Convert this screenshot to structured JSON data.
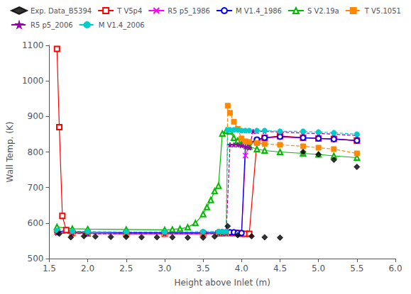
{
  "chart_data": {
    "type": "line",
    "xlabel": "Height above Inlet (m)",
    "ylabel": "Wall Temp. (K)",
    "xlim": [
      1.5,
      6.0
    ],
    "ylim": [
      500,
      1100
    ],
    "xticks": [
      1.5,
      {
        "value": 2.0,
        "label": "2.0"
      },
      2.5,
      {
        "value": 3.0,
        "label": "3.0"
      },
      3.5,
      {
        "value": 4.0,
        "label": "4.0"
      },
      4.5,
      {
        "value": 5.0,
        "label": "5.0"
      },
      5.5,
      {
        "value": 6.0,
        "label": "6.0"
      }
    ],
    "yticks": [
      500,
      600,
      700,
      800,
      900,
      1000,
      1100
    ],
    "grid": false,
    "legend": "upper left",
    "series": [
      {
        "name": "Exp. Data_B5394",
        "type": "scatter",
        "color": "#000000",
        "marker": "diamond",
        "x": [
          1.63,
          1.78,
          1.95,
          2.1,
          2.3,
          2.5,
          2.7,
          2.9,
          3.1,
          3.3,
          3.5,
          3.65,
          3.82,
          3.95,
          4.13,
          4.3,
          4.5,
          4.8,
          5.0,
          5.2,
          5.5
        ],
        "values": [
          570,
          560,
          563,
          562,
          561,
          561,
          560,
          560,
          560,
          559,
          559,
          562,
          591,
          566,
          563,
          560,
          559,
          800,
          793,
          778,
          758
        ]
      },
      {
        "name": "T V5p4",
        "type": "line",
        "color": "#ff0000",
        "line_style": "solid",
        "marker": "open square",
        "x": [
          1.6,
          1.63,
          1.67,
          1.72,
          1.8,
          2.0,
          2.5,
          3.0,
          3.5,
          3.7,
          3.75,
          3.8,
          3.85,
          3.9,
          3.95,
          4.0,
          4.05,
          4.1,
          4.2,
          4.3,
          4.5,
          4.8,
          5.0,
          5.2,
          5.5
        ],
        "values": [
          1090,
          870,
          620,
          580,
          572,
          571,
          570,
          570,
          570,
          571,
          571,
          572,
          572,
          572,
          572,
          570,
          570,
          570,
          830,
          840,
          845,
          840,
          838,
          837,
          832
        ]
      },
      {
        "name": "R5 p5_1986",
        "type": "line",
        "color": "#ff00ff",
        "line_style": "solid",
        "marker": "x",
        "x": [
          1.6,
          1.8,
          2.0,
          2.5,
          3.0,
          3.5,
          3.7,
          3.75,
          3.8,
          3.85,
          3.9,
          3.95,
          4.0,
          4.05,
          4.1,
          4.2,
          4.3,
          4.5,
          4.8,
          5.0,
          5.2,
          5.5
        ],
        "values": [
          574,
          572,
          571,
          570,
          570,
          570,
          571,
          571,
          571,
          571,
          572,
          570,
          570,
          790,
          820,
          835,
          840,
          842,
          840,
          838,
          836,
          832
        ]
      },
      {
        "name": "M V1.4_1986",
        "type": "line",
        "color": "#0000ff",
        "line_style": "solid",
        "marker": "open circle",
        "x": [
          1.6,
          1.8,
          2.0,
          2.5,
          3.0,
          3.5,
          3.7,
          3.75,
          3.8,
          3.85,
          3.9,
          3.95,
          4.0,
          4.05,
          4.1,
          4.2,
          4.3,
          4.5,
          4.8,
          5.0,
          5.2,
          5.5
        ],
        "values": [
          577,
          575,
          574,
          573,
          573,
          573,
          574,
          574,
          574,
          574,
          574,
          572,
          572,
          820,
          825,
          835,
          840,
          843,
          840,
          838,
          836,
          832
        ]
      },
      {
        "name": "S V2.19a",
        "type": "line",
        "color": "#00bb00",
        "line_style": "solid",
        "marker": "open triangle",
        "x": [
          1.6,
          1.8,
          2.0,
          2.5,
          3.0,
          3.1,
          3.2,
          3.3,
          3.4,
          3.5,
          3.55,
          3.6,
          3.65,
          3.7,
          3.75,
          3.8,
          3.85,
          3.9,
          3.95,
          4.0,
          4.1,
          4.2,
          4.3,
          4.5,
          4.8,
          5.0,
          5.2,
          5.5
        ],
        "values": [
          589,
          584,
          583,
          582,
          581,
          582,
          584,
          588,
          600,
          625,
          645,
          665,
          690,
          705,
          852,
          860,
          858,
          840,
          832,
          823,
          815,
          808,
          804,
          800,
          796,
          793,
          789,
          784
        ]
      },
      {
        "name": "T V5.1051",
        "type": "line",
        "color": "#ff8800",
        "line_style": "dashed",
        "marker": "square",
        "x": [
          1.6,
          1.8,
          2.0,
          2.5,
          3.0,
          3.5,
          3.7,
          3.75,
          3.8,
          3.82,
          3.85,
          3.9,
          3.95,
          4.0,
          4.05,
          4.1,
          4.2,
          4.3,
          4.5,
          4.8,
          5.0,
          5.2,
          5.5
        ],
        "values": [
          574,
          572,
          571,
          570,
          570,
          570,
          571,
          571,
          571,
          930,
          910,
          885,
          865,
          838,
          830,
          828,
          825,
          823,
          820,
          816,
          812,
          808,
          796
        ]
      },
      {
        "name": "R5 p5_2006",
        "type": "line",
        "color": "#9900aa",
        "line_style": "dashed",
        "marker": "star",
        "x": [
          1.6,
          1.8,
          2.0,
          2.5,
          3.0,
          3.5,
          3.7,
          3.75,
          3.8,
          3.85,
          3.9,
          3.95,
          4.0,
          4.05,
          4.1,
          4.15,
          4.2,
          4.3,
          4.5,
          4.8,
          5.0,
          5.2,
          5.5
        ],
        "values": [
          572,
          571,
          570,
          570,
          570,
          570,
          571,
          571,
          571,
          820,
          820,
          820,
          818,
          815,
          812,
          858,
          858,
          858,
          856,
          853,
          852,
          850,
          846
        ]
      },
      {
        "name": "M V1.4_2006",
        "type": "line",
        "color": "#00cccc",
        "line_style": "dashed",
        "marker": "circle",
        "x": [
          1.6,
          1.8,
          2.0,
          2.5,
          3.0,
          3.5,
          3.7,
          3.75,
          3.8,
          3.82,
          3.85,
          3.9,
          3.95,
          4.0,
          4.05,
          4.1,
          4.2,
          4.3,
          4.5,
          4.8,
          5.0,
          5.2,
          5.5
        ],
        "values": [
          579,
          577,
          576,
          575,
          575,
          576,
          576,
          576,
          576,
          862,
          862,
          862,
          862,
          860,
          860,
          860,
          860,
          860,
          858,
          858,
          856,
          854,
          850
        ]
      }
    ]
  }
}
